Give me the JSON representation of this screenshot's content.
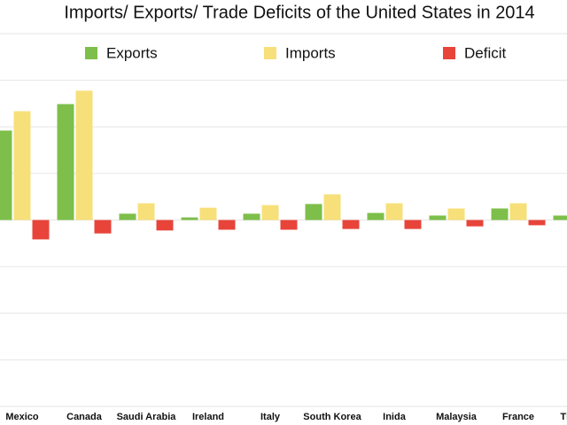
{
  "chart_data": {
    "type": "bar",
    "title": "Imports/ Exports/ Trade Deficits of the United States in 2014",
    "categories": [
      "Mexico",
      "Canada",
      "Saudi Arabia",
      "Ireland",
      "Italy",
      "South Korea",
      "Inida",
      "Malaysia",
      "France",
      "Thailand"
    ],
    "series": [
      {
        "name": "Exports",
        "color": "#7dbf4a",
        "values": [
          240,
          311,
          17,
          7,
          17,
          43,
          19,
          12,
          31,
          12
        ]
      },
      {
        "name": "Imports",
        "color": "#f7e07a",
        "values": [
          292,
          347,
          45,
          33,
          40,
          69,
          45,
          31,
          45,
          null
        ]
      },
      {
        "name": "Deficit",
        "color": "#e8443a",
        "values": [
          -52,
          -36,
          -28,
          -26,
          -26,
          -24,
          -24,
          -17,
          -14,
          null
        ]
      }
    ],
    "ylim": [
      -500,
      500
    ],
    "yticks": [
      -500,
      -375,
      -250,
      -125,
      0,
      125,
      250,
      375,
      500
    ],
    "grid": true
  }
}
